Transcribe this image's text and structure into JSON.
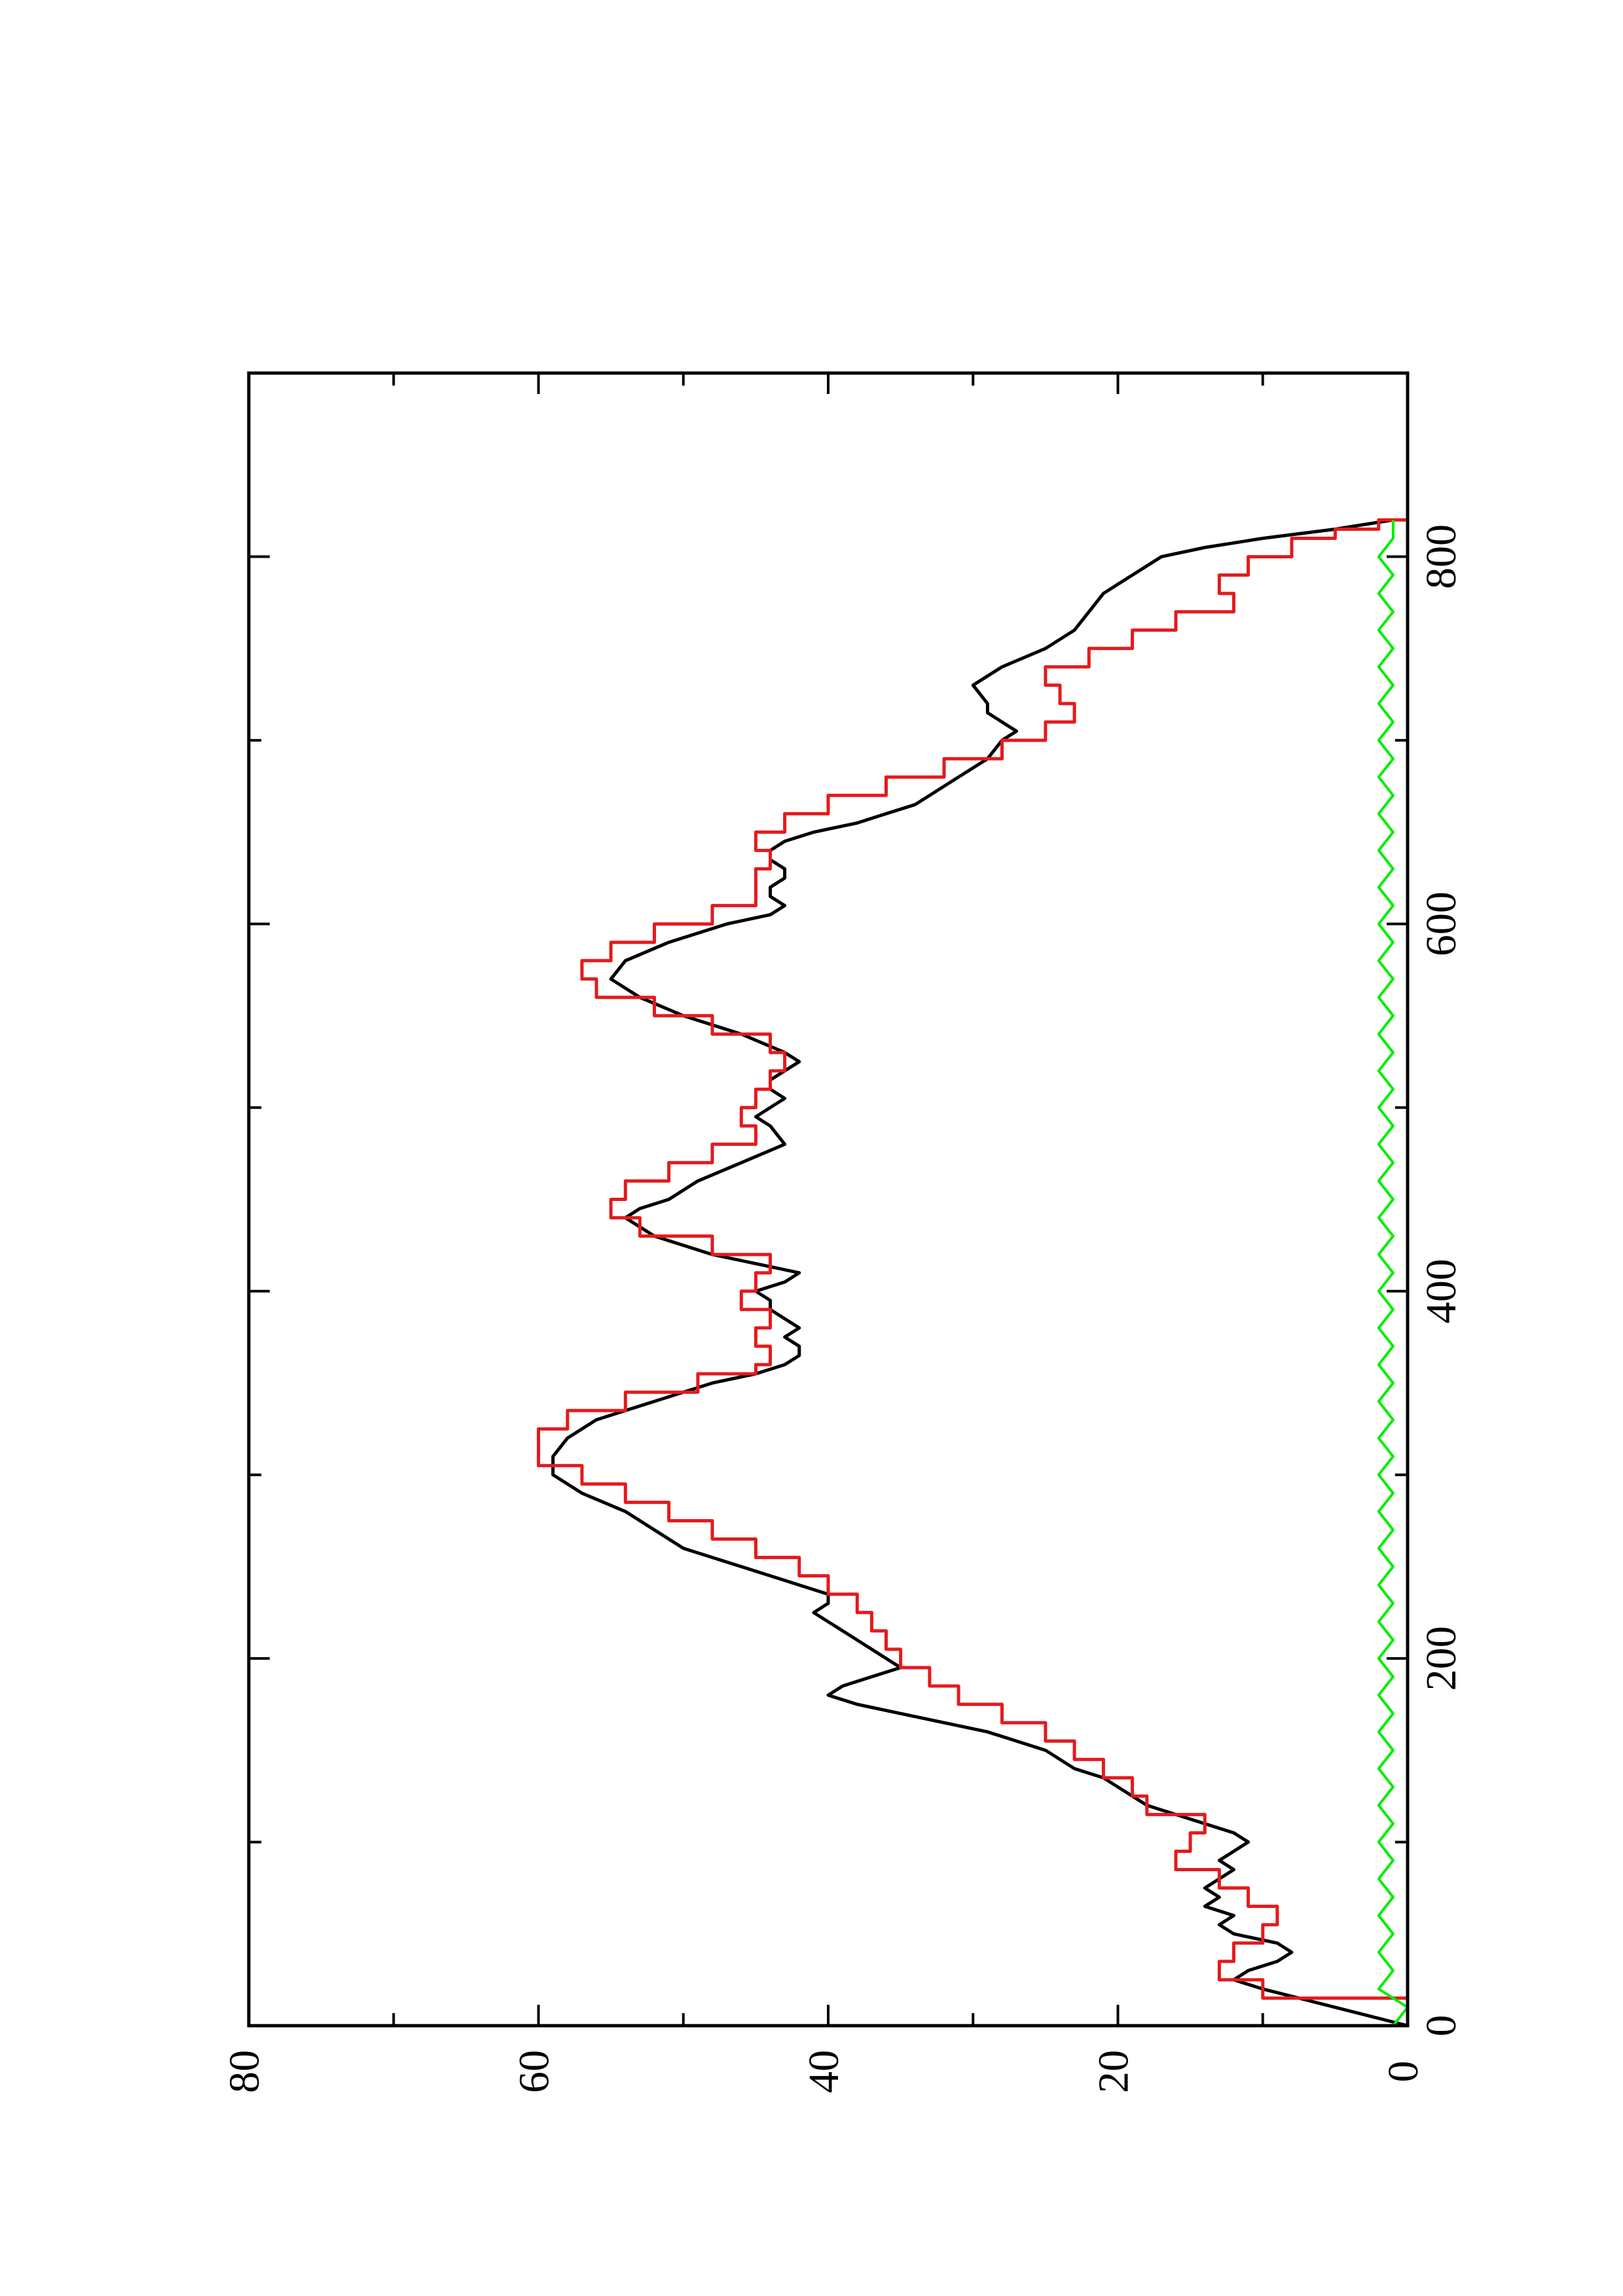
{
  "chart_data": {
    "type": "line",
    "orientation": "rotated 90 degrees counter-clockwise (x axis runs bottom-to-top on the page, y axis runs right-to-left)",
    "title": "",
    "xlabel": "",
    "ylabel": "",
    "xlim": [
      0,
      900
    ],
    "ylim": [
      0,
      80
    ],
    "x_ticks": [
      "0",
      "200",
      "400",
      "600",
      "800"
    ],
    "x_tick_values": [
      0,
      200,
      400,
      600,
      800
    ],
    "y_ticks": [
      "0",
      "20",
      "40",
      "60",
      "80"
    ],
    "y_tick_values": [
      0,
      20,
      40,
      60,
      80
    ],
    "x_minor_ticks": [
      100,
      300,
      500,
      700
    ],
    "y_minor_ticks": [
      10,
      30,
      50,
      70
    ],
    "grid": false,
    "legend": "none",
    "series": [
      {
        "color": "#000000",
        "style": "smooth",
        "points": [
          [
            0,
            0
          ],
          [
            10,
            5
          ],
          [
            20,
            10
          ],
          [
            25,
            12
          ],
          [
            30,
            11
          ],
          [
            35,
            9
          ],
          [
            40,
            8
          ],
          [
            45,
            9
          ],
          [
            50,
            12
          ],
          [
            55,
            13
          ],
          [
            60,
            12
          ],
          [
            65,
            14
          ],
          [
            70,
            13
          ],
          [
            75,
            14
          ],
          [
            80,
            13
          ],
          [
            85,
            12
          ],
          [
            90,
            13
          ],
          [
            95,
            12
          ],
          [
            100,
            11
          ],
          [
            105,
            12
          ],
          [
            110,
            14
          ],
          [
            115,
            16
          ],
          [
            120,
            18
          ],
          [
            125,
            19
          ],
          [
            130,
            20
          ],
          [
            135,
            21
          ],
          [
            140,
            23
          ],
          [
            145,
            24
          ],
          [
            150,
            25
          ],
          [
            155,
            27
          ],
          [
            160,
            29
          ],
          [
            165,
            32
          ],
          [
            170,
            35
          ],
          [
            175,
            38
          ],
          [
            180,
            40
          ],
          [
            185,
            39
          ],
          [
            190,
            37
          ],
          [
            195,
            35
          ],
          [
            200,
            36
          ],
          [
            205,
            37
          ],
          [
            210,
            38
          ],
          [
            215,
            39
          ],
          [
            220,
            40
          ],
          [
            225,
            41
          ],
          [
            230,
            40
          ],
          [
            235,
            40
          ],
          [
            240,
            42
          ],
          [
            245,
            44
          ],
          [
            250,
            46
          ],
          [
            255,
            48
          ],
          [
            260,
            50
          ],
          [
            270,
            52
          ],
          [
            280,
            54
          ],
          [
            290,
            57
          ],
          [
            300,
            59
          ],
          [
            310,
            59
          ],
          [
            320,
            58
          ],
          [
            330,
            56
          ],
          [
            340,
            52
          ],
          [
            350,
            48
          ],
          [
            355,
            45
          ],
          [
            360,
            43
          ],
          [
            365,
            42
          ],
          [
            370,
            42
          ],
          [
            375,
            43
          ],
          [
            380,
            42
          ],
          [
            385,
            43
          ],
          [
            390,
            44
          ],
          [
            395,
            44
          ],
          [
            400,
            45
          ],
          [
            405,
            43
          ],
          [
            410,
            42
          ],
          [
            415,
            45
          ],
          [
            420,
            48
          ],
          [
            430,
            52
          ],
          [
            440,
            54
          ],
          [
            445,
            53
          ],
          [
            450,
            51
          ],
          [
            460,
            49
          ],
          [
            470,
            46
          ],
          [
            480,
            43
          ],
          [
            490,
            44
          ],
          [
            495,
            45
          ],
          [
            500,
            44
          ],
          [
            505,
            43
          ],
          [
            510,
            44
          ],
          [
            515,
            44
          ],
          [
            520,
            43
          ],
          [
            525,
            42
          ],
          [
            530,
            43
          ],
          [
            540,
            46
          ],
          [
            550,
            50
          ],
          [
            560,
            53
          ],
          [
            570,
            55
          ],
          [
            580,
            54
          ],
          [
            590,
            51
          ],
          [
            600,
            47
          ],
          [
            605,
            44
          ],
          [
            610,
            43
          ],
          [
            615,
            44
          ],
          [
            620,
            44
          ],
          [
            625,
            43
          ],
          [
            630,
            43
          ],
          [
            635,
            44
          ],
          [
            640,
            44
          ],
          [
            645,
            43
          ],
          [
            650,
            41
          ],
          [
            655,
            38
          ],
          [
            660,
            36
          ],
          [
            665,
            34
          ],
          [
            670,
            33
          ],
          [
            680,
            31
          ],
          [
            690,
            29
          ],
          [
            700,
            28
          ],
          [
            705,
            27
          ],
          [
            710,
            28
          ],
          [
            715,
            29
          ],
          [
            720,
            29
          ],
          [
            730,
            30
          ],
          [
            740,
            28
          ],
          [
            750,
            25
          ],
          [
            760,
            23
          ],
          [
            770,
            22
          ],
          [
            780,
            21
          ],
          [
            790,
            19
          ],
          [
            800,
            17
          ],
          [
            805,
            14
          ],
          [
            810,
            10
          ],
          [
            815,
            5
          ],
          [
            820,
            1
          ]
        ]
      },
      {
        "color": "#e41a1c",
        "style": "step",
        "points": [
          [
            0,
            0
          ],
          [
            15,
            10
          ],
          [
            25,
            13
          ],
          [
            35,
            12
          ],
          [
            45,
            10
          ],
          [
            55,
            9
          ],
          [
            65,
            11
          ],
          [
            75,
            13
          ],
          [
            85,
            16
          ],
          [
            95,
            15
          ],
          [
            105,
            14
          ],
          [
            115,
            18
          ],
          [
            125,
            19
          ],
          [
            135,
            21
          ],
          [
            145,
            23
          ],
          [
            155,
            25
          ],
          [
            165,
            28
          ],
          [
            175,
            31
          ],
          [
            185,
            33
          ],
          [
            195,
            35
          ],
          [
            205,
            36
          ],
          [
            215,
            37
          ],
          [
            225,
            38
          ],
          [
            235,
            40
          ],
          [
            245,
            42
          ],
          [
            255,
            45
          ],
          [
            265,
            48
          ],
          [
            275,
            51
          ],
          [
            285,
            54
          ],
          [
            295,
            57
          ],
          [
            305,
            60
          ],
          [
            315,
            60
          ],
          [
            325,
            58
          ],
          [
            335,
            54
          ],
          [
            345,
            49
          ],
          [
            355,
            45
          ],
          [
            360,
            44
          ],
          [
            370,
            45
          ],
          [
            380,
            44
          ],
          [
            390,
            46
          ],
          [
            400,
            45
          ],
          [
            410,
            44
          ],
          [
            420,
            48
          ],
          [
            430,
            53
          ],
          [
            440,
            55
          ],
          [
            450,
            54
          ],
          [
            460,
            51
          ],
          [
            470,
            48
          ],
          [
            480,
            45
          ],
          [
            490,
            46
          ],
          [
            500,
            45
          ],
          [
            510,
            44
          ],
          [
            520,
            43
          ],
          [
            530,
            44
          ],
          [
            540,
            48
          ],
          [
            550,
            52
          ],
          [
            560,
            56
          ],
          [
            570,
            57
          ],
          [
            580,
            55
          ],
          [
            590,
            52
          ],
          [
            600,
            48
          ],
          [
            610,
            45
          ],
          [
            620,
            45
          ],
          [
            630,
            44
          ],
          [
            640,
            45
          ],
          [
            650,
            43
          ],
          [
            660,
            40
          ],
          [
            670,
            36
          ],
          [
            680,
            32
          ],
          [
            690,
            28
          ],
          [
            700,
            25
          ],
          [
            710,
            23
          ],
          [
            720,
            24
          ],
          [
            730,
            25
          ],
          [
            740,
            22
          ],
          [
            750,
            19
          ],
          [
            760,
            16
          ],
          [
            770,
            12
          ],
          [
            780,
            13
          ],
          [
            790,
            11
          ],
          [
            800,
            8
          ],
          [
            810,
            5
          ],
          [
            815,
            2
          ],
          [
            820,
            0
          ]
        ]
      },
      {
        "color": "#00ee00",
        "style": "noise",
        "points": [
          [
            0,
            1
          ],
          [
            10,
            0
          ],
          [
            20,
            2
          ],
          [
            30,
            1
          ],
          [
            40,
            2
          ],
          [
            50,
            1
          ],
          [
            60,
            2
          ],
          [
            70,
            1
          ],
          [
            80,
            2
          ],
          [
            90,
            1
          ],
          [
            100,
            2
          ],
          [
            110,
            1
          ],
          [
            120,
            2
          ],
          [
            130,
            1
          ],
          [
            140,
            2
          ],
          [
            150,
            1
          ],
          [
            160,
            2
          ],
          [
            170,
            1
          ],
          [
            180,
            2
          ],
          [
            190,
            1
          ],
          [
            200,
            2
          ],
          [
            210,
            1
          ],
          [
            220,
            2
          ],
          [
            230,
            1
          ],
          [
            240,
            2
          ],
          [
            250,
            1
          ],
          [
            260,
            2
          ],
          [
            270,
            1
          ],
          [
            280,
            2
          ],
          [
            290,
            1
          ],
          [
            300,
            2
          ],
          [
            310,
            1
          ],
          [
            320,
            2
          ],
          [
            330,
            1
          ],
          [
            340,
            2
          ],
          [
            350,
            1
          ],
          [
            360,
            2
          ],
          [
            370,
            1
          ],
          [
            380,
            2
          ],
          [
            390,
            1
          ],
          [
            400,
            2
          ],
          [
            410,
            1
          ],
          [
            420,
            2
          ],
          [
            430,
            1
          ],
          [
            440,
            2
          ],
          [
            450,
            1
          ],
          [
            460,
            2
          ],
          [
            470,
            1
          ],
          [
            480,
            2
          ],
          [
            490,
            1
          ],
          [
            500,
            2
          ],
          [
            510,
            1
          ],
          [
            520,
            2
          ],
          [
            530,
            1
          ],
          [
            540,
            2
          ],
          [
            550,
            1
          ],
          [
            560,
            2
          ],
          [
            570,
            1
          ],
          [
            580,
            2
          ],
          [
            590,
            1
          ],
          [
            600,
            2
          ],
          [
            610,
            1
          ],
          [
            620,
            2
          ],
          [
            630,
            1
          ],
          [
            640,
            2
          ],
          [
            650,
            1
          ],
          [
            660,
            2
          ],
          [
            670,
            1
          ],
          [
            680,
            2
          ],
          [
            690,
            1
          ],
          [
            700,
            2
          ],
          [
            710,
            1
          ],
          [
            720,
            2
          ],
          [
            730,
            1
          ],
          [
            740,
            2
          ],
          [
            750,
            1
          ],
          [
            760,
            2
          ],
          [
            770,
            1
          ],
          [
            780,
            2
          ],
          [
            790,
            1
          ],
          [
            800,
            2
          ],
          [
            810,
            1
          ],
          [
            820,
            1
          ]
        ]
      }
    ]
  }
}
